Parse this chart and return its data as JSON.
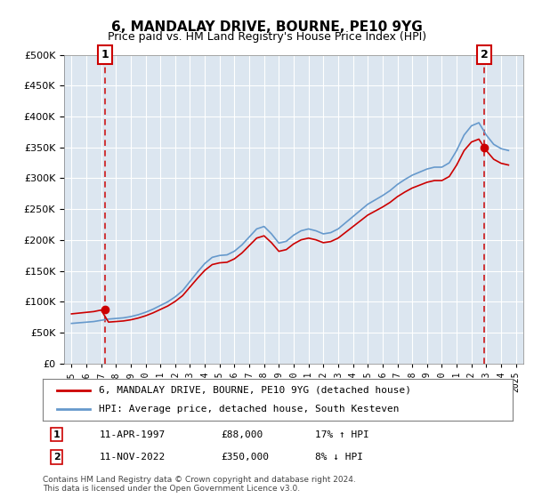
{
  "title": "6, MANDALAY DRIVE, BOURNE, PE10 9YG",
  "subtitle": "Price paid vs. HM Land Registry's House Price Index (HPI)",
  "legend_line1": "6, MANDALAY DRIVE, BOURNE, PE10 9YG (detached house)",
  "legend_line2": "HPI: Average price, detached house, South Kesteven",
  "annotation1_label": "1",
  "annotation1_date": "11-APR-1997",
  "annotation1_price": "£88,000",
  "annotation1_hpi": "17% ↑ HPI",
  "annotation2_label": "2",
  "annotation2_date": "11-NOV-2022",
  "annotation2_price": "£350,000",
  "annotation2_hpi": "8% ↓ HPI",
  "footer": "Contains HM Land Registry data © Crown copyright and database right 2024.\nThis data is licensed under the Open Government Licence v3.0.",
  "plot_bg": "#dce6f0",
  "line_color_red": "#cc0000",
  "line_color_blue": "#6699cc",
  "annotation_box_color": "#cc0000",
  "dashed_line_color": "#cc0000",
  "ylim": [
    0,
    500000
  ],
  "yticks": [
    0,
    50000,
    100000,
    150000,
    200000,
    250000,
    300000,
    350000,
    400000,
    450000,
    500000
  ],
  "sale1_year": 1997.28,
  "sale1_price": 88000,
  "sale2_year": 2022.86,
  "sale2_price": 350000,
  "hpi_years": [
    1995,
    1995.5,
    1996,
    1996.5,
    1997,
    1997.5,
    1998,
    1998.5,
    1999,
    1999.5,
    2000,
    2000.5,
    2001,
    2001.5,
    2002,
    2002.5,
    2003,
    2003.5,
    2004,
    2004.5,
    2005,
    2005.5,
    2006,
    2006.5,
    2007,
    2007.5,
    2008,
    2008.5,
    2009,
    2009.5,
    2010,
    2010.5,
    2011,
    2011.5,
    2012,
    2012.5,
    2013,
    2013.5,
    2014,
    2014.5,
    2015,
    2015.5,
    2016,
    2016.5,
    2017,
    2017.5,
    2018,
    2018.5,
    2019,
    2019.5,
    2020,
    2020.5,
    2021,
    2021.5,
    2022,
    2022.5,
    2023,
    2023.5,
    2024,
    2024.5
  ],
  "hpi_values": [
    65000,
    66000,
    67000,
    68000,
    70000,
    72000,
    73000,
    74000,
    76000,
    79000,
    83000,
    88000,
    94000,
    100000,
    108000,
    118000,
    133000,
    148000,
    162000,
    172000,
    175000,
    176000,
    182000,
    192000,
    205000,
    218000,
    222000,
    210000,
    195000,
    198000,
    208000,
    215000,
    218000,
    215000,
    210000,
    212000,
    218000,
    228000,
    238000,
    248000,
    258000,
    265000,
    272000,
    280000,
    290000,
    298000,
    305000,
    310000,
    315000,
    318000,
    318000,
    325000,
    345000,
    370000,
    385000,
    390000,
    370000,
    355000,
    348000,
    345000
  ]
}
